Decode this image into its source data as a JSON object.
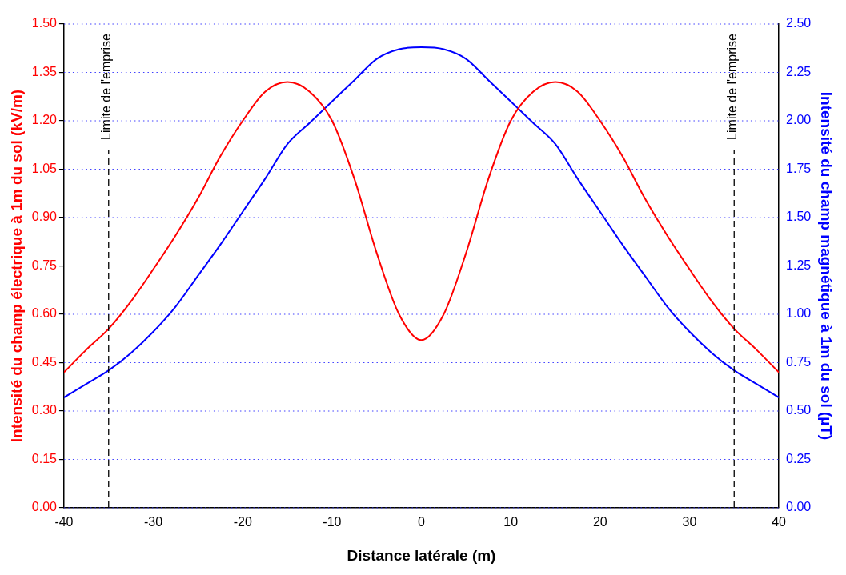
{
  "chart_data": {
    "type": "line",
    "xlabel": "Distance latérale (m)",
    "ylabel": "Intensité du champ électrique à 1m du sol (kV/m)",
    "y2label": "Intensité du champ magnétique à 1m du sol (µT)",
    "x": [
      -40,
      -37.5,
      -35,
      -32.5,
      -30,
      -27.5,
      -25,
      -22.5,
      -20,
      -17.5,
      -15,
      -12.5,
      -10,
      -7.5,
      -5,
      -2.5,
      0,
      2.5,
      5,
      7.5,
      10,
      12.5,
      15,
      17.5,
      20,
      22.5,
      25,
      27.5,
      30,
      32.5,
      35,
      37.5,
      40
    ],
    "series": [
      {
        "color": "#ff0000",
        "values": [
          0.42,
          0.49,
          0.555,
          0.64,
          0.74,
          0.845,
          0.96,
          1.09,
          1.2,
          1.29,
          1.32,
          1.29,
          1.2,
          1.02,
          0.79,
          0.6,
          0.52,
          0.6,
          0.79,
          1.02,
          1.2,
          1.29,
          1.32,
          1.29,
          1.2,
          1.09,
          0.96,
          0.845,
          0.74,
          0.64,
          0.555,
          0.49,
          0.42
        ]
      },
      {
        "color": "#0000ff",
        "axis": "y2",
        "values": [
          0.57,
          0.64,
          0.71,
          0.8,
          0.91,
          1.04,
          1.2,
          1.36,
          1.53,
          1.7,
          1.88,
          1.99,
          2.1,
          2.21,
          2.32,
          2.37,
          2.38,
          2.37,
          2.32,
          2.21,
          2.1,
          1.99,
          1.88,
          1.7,
          1.53,
          1.36,
          1.2,
          1.04,
          0.91,
          0.8,
          0.71,
          0.64,
          0.57
        ]
      }
    ],
    "xlim": [
      -40,
      40
    ],
    "xticks": [
      -40,
      -30,
      -20,
      -10,
      0,
      10,
      20,
      30,
      40
    ],
    "ylim": [
      0,
      1.5
    ],
    "yticks": [
      {
        "value": 0,
        "label": "0.00"
      },
      {
        "value": 0.15,
        "label": "0.15"
      },
      {
        "value": 0.3,
        "label": "0.30"
      },
      {
        "value": 0.45,
        "label": "0.45"
      },
      {
        "value": 0.6,
        "label": "0.60"
      },
      {
        "value": 0.75,
        "label": "0.75"
      },
      {
        "value": 0.9,
        "label": "0.90"
      },
      {
        "value": 1.05,
        "label": "1.05"
      },
      {
        "value": 1.2,
        "label": "1.20"
      },
      {
        "value": 1.35,
        "label": "1.35"
      },
      {
        "value": 1.5,
        "label": "1.50"
      }
    ],
    "y2lim": [
      0,
      2.5
    ],
    "y2ticks": [
      {
        "value": 0,
        "label": "0.00"
      },
      {
        "value": 0.25,
        "label": "0.25"
      },
      {
        "value": 0.5,
        "label": "0.50"
      },
      {
        "value": 0.75,
        "label": "0.75"
      },
      {
        "value": 1,
        "label": "1.00"
      },
      {
        "value": 1.25,
        "label": "1.25"
      },
      {
        "value": 1.5,
        "label": "1.50"
      },
      {
        "value": 1.75,
        "label": "1.75"
      },
      {
        "value": 2,
        "label": "2.00"
      },
      {
        "value": 2.25,
        "label": "2.25"
      },
      {
        "value": 2.5,
        "label": "2.50"
      }
    ],
    "ref_lines": [
      {
        "axis": "x",
        "value": -35,
        "label": "Limite de l'emprise",
        "color": "#000000",
        "line_style": "dashed"
      },
      {
        "axis": "x",
        "value": 35,
        "label": "Limite de l'emprise",
        "color": "#000000",
        "line_style": "dashed"
      }
    ],
    "grid": "y",
    "legend": false,
    "marker": "none",
    "line_style": "solid"
  }
}
